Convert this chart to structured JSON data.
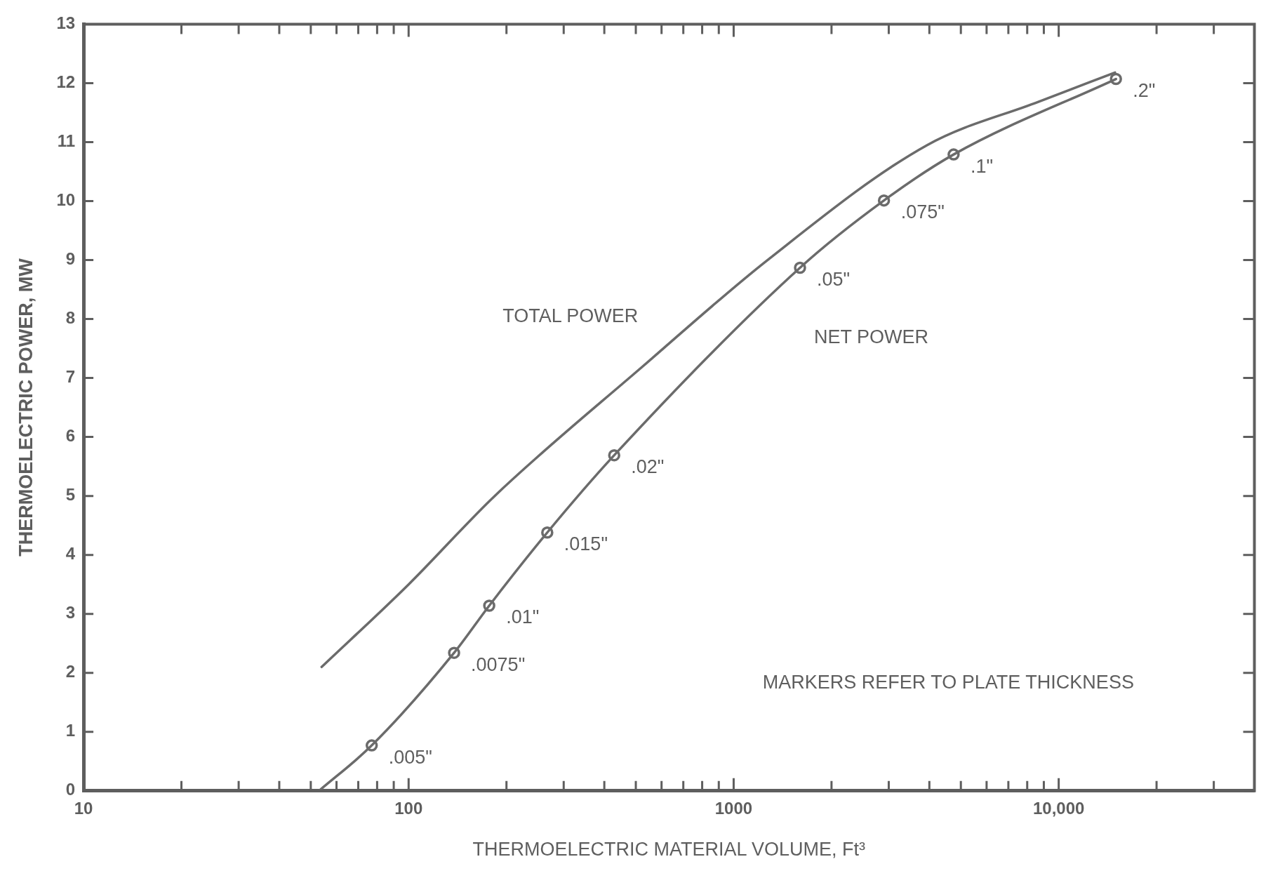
{
  "chart_data": {
    "type": "line",
    "xlabel": "THERMOELECTRIC MATERIAL VOLUME, Ft³",
    "ylabel": "THERMOELECTRIC POWER, MW",
    "log": "x",
    "xlim": [
      10,
      40000
    ],
    "ylim": [
      0,
      13
    ],
    "xticks": [
      {
        "value": 10,
        "label": "10"
      },
      {
        "value": 20,
        "label": null
      },
      {
        "value": 30,
        "label": null
      },
      {
        "value": 40,
        "label": null
      },
      {
        "value": 50,
        "label": null
      },
      {
        "value": 60,
        "label": null
      },
      {
        "value": 70,
        "label": null
      },
      {
        "value": 80,
        "label": null
      },
      {
        "value": 90,
        "label": null
      },
      {
        "value": 100,
        "label": "100"
      },
      {
        "value": 200,
        "label": null
      },
      {
        "value": 300,
        "label": null
      },
      {
        "value": 400,
        "label": null
      },
      {
        "value": 500,
        "label": null
      },
      {
        "value": 600,
        "label": null
      },
      {
        "value": 700,
        "label": null
      },
      {
        "value": 800,
        "label": null
      },
      {
        "value": 900,
        "label": null
      },
      {
        "value": 1000,
        "label": "1000"
      },
      {
        "value": 2000,
        "label": null
      },
      {
        "value": 3000,
        "label": null
      },
      {
        "value": 4000,
        "label": null
      },
      {
        "value": 5000,
        "label": null
      },
      {
        "value": 6000,
        "label": null
      },
      {
        "value": 7000,
        "label": null
      },
      {
        "value": 8000,
        "label": null
      },
      {
        "value": 9000,
        "label": null
      },
      {
        "value": 10000,
        "label": "10,000"
      },
      {
        "value": 20000,
        "label": null
      },
      {
        "value": 30000,
        "label": null
      }
    ],
    "yticks": [
      0,
      1,
      2,
      3,
      4,
      5,
      6,
      7,
      8,
      9,
      10,
      11,
      12,
      13
    ],
    "line_style": "solid",
    "series": [
      {
        "name": "TOTAL POWER",
        "color": "#6b6b6b",
        "marker": "none",
        "x": [
          54,
          100,
          184,
          526,
          1271,
          3940,
          8630,
          14900
        ],
        "values": [
          2.1,
          3.5,
          5.0,
          7.2,
          9.0,
          10.95,
          11.68,
          12.18
        ]
      },
      {
        "name": "NET POWER",
        "color": "#6b6b6b",
        "marker": "none",
        "x": [
          53,
          77,
          138,
          177,
          267,
          429,
          1600,
          2900,
          4750,
          15000
        ],
        "values": [
          0,
          0.77,
          2.34,
          3.14,
          4.38,
          5.69,
          8.87,
          10.01,
          10.79,
          12.07
        ]
      },
      {
        "type": "scatter",
        "color": "#6b6b6b",
        "marker": "circle",
        "x": [
          77,
          138,
          177,
          267,
          429,
          1600,
          2900,
          4750,
          15000
        ],
        "values": [
          0.77,
          2.34,
          3.14,
          4.38,
          5.69,
          8.87,
          10.01,
          10.79,
          12.07
        ]
      }
    ],
    "annotations": [
      {
        "text": ".005\"",
        "x": 77,
        "y": 0.77
      },
      {
        "text": ".0075\"",
        "x": 138,
        "y": 2.34
      },
      {
        "text": ".01\"",
        "x": 177,
        "y": 3.14
      },
      {
        "text": ".015\"",
        "x": 267,
        "y": 4.38
      },
      {
        "text": ".02\"",
        "x": 429,
        "y": 5.69
      },
      {
        "text": ".05\"",
        "x": 1600,
        "y": 8.87
      },
      {
        "text": ".075\"",
        "x": 2900,
        "y": 10.01
      },
      {
        "text": ".1\"",
        "x": 4750,
        "y": 10.79
      },
      {
        "text": ".2\"",
        "x": 15000,
        "y": 12.07
      },
      "MARKERS REFER TO PLATE THICKNESS"
    ]
  }
}
